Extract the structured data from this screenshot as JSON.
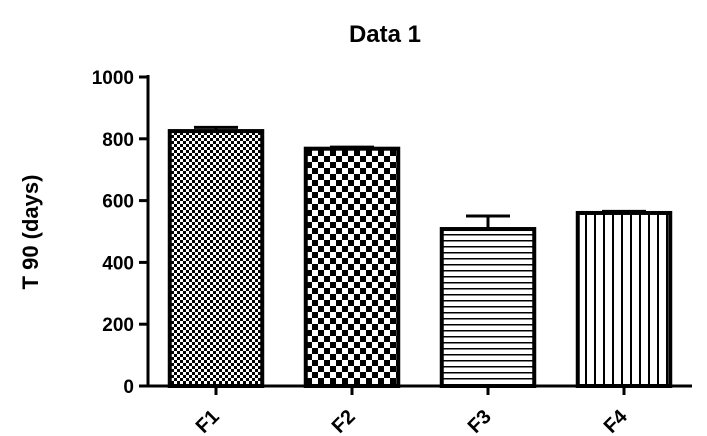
{
  "chart_data": {
    "type": "bar",
    "title": "Data 1",
    "xlabel": "",
    "ylabel": "T 90 (days)",
    "categories": [
      "F1",
      "F2",
      "F3",
      "F4"
    ],
    "values": [
      825,
      768,
      508,
      560
    ],
    "errors": [
      12,
      5,
      42,
      5
    ],
    "ylim": [
      0,
      1000
    ],
    "yticks": [
      "0",
      "200",
      "400",
      "600",
      "800",
      "1000"
    ],
    "patterns": [
      "fine-checker",
      "checker",
      "horizontal-lines",
      "vertical-lines"
    ],
    "bar_color": "#000000",
    "fill_color": "#ffffff",
    "grid": false,
    "legend": "none"
  }
}
